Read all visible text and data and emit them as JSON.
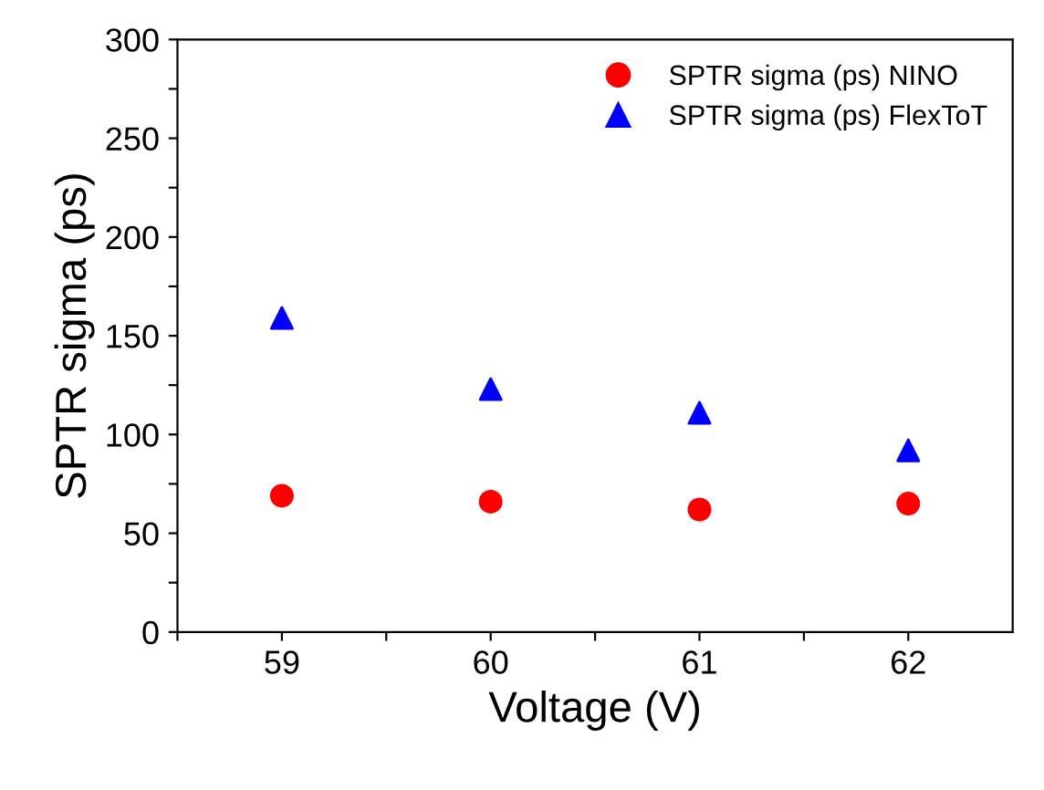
{
  "chart_data": {
    "type": "scatter",
    "xlabel": "Voltage (V)",
    "ylabel": "SPTR sigma (ps)",
    "x": [
      59,
      60,
      61,
      62
    ],
    "series": [
      {
        "name": "SPTR sigma (ps) NINO",
        "color": "#ff0000",
        "marker": "circle",
        "values": [
          69,
          66,
          62,
          65
        ]
      },
      {
        "name": "SPTR sigma (ps) FlexToT",
        "color": "#0000ff",
        "marker": "triangle",
        "values": [
          159,
          123,
          111,
          92
        ]
      }
    ],
    "xlim": [
      58.5,
      62.5
    ],
    "xticks": [
      {
        "value": 58.5,
        "label": null
      },
      59,
      {
        "value": 59.5,
        "label": null
      },
      60,
      {
        "value": 60.5,
        "label": null
      },
      61,
      {
        "value": 61.5,
        "label": null
      },
      62
    ],
    "ylim": [
      0,
      300
    ],
    "yticks": [
      0,
      {
        "value": 25,
        "label": null
      },
      50,
      {
        "value": 75,
        "label": null
      },
      100,
      {
        "value": 125,
        "label": null
      },
      150,
      {
        "value": 175,
        "label": null
      },
      200,
      {
        "value": 225,
        "label": null
      },
      250,
      {
        "value": 275,
        "label": null
      },
      300
    ],
    "grid": false,
    "legend": "top right"
  }
}
